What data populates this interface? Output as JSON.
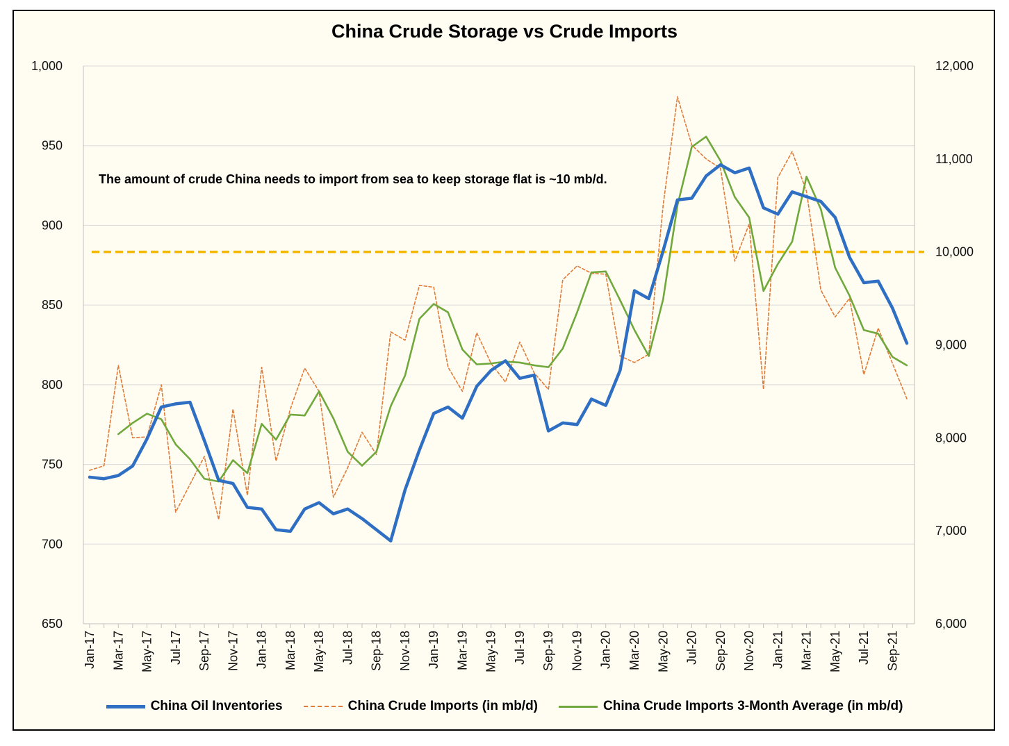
{
  "chart_data": {
    "type": "line",
    "title": "China Crude Storage vs Crude Imports",
    "annotation": "The amount of crude China needs to import from sea to keep storage flat is ~10 mb/d.",
    "x_tick_labels": [
      "Jan-17",
      "Mar-17",
      "May-17",
      "Jul-17",
      "Sep-17",
      "Nov-17",
      "Jan-18",
      "Mar-18",
      "May-18",
      "Jul-18",
      "Sep-18",
      "Nov-18",
      "Jan-19",
      "Mar-19",
      "May-19",
      "Jul-19",
      "Sep-19",
      "Nov-19",
      "Jan-20",
      "Mar-20",
      "May-20",
      "Jul-20",
      "Sep-20",
      "Nov-20",
      "Jan-21",
      "Mar-21",
      "May-21",
      "Jul-21",
      "Sep-21"
    ],
    "x_months": [
      "Jan-17",
      "Feb-17",
      "Mar-17",
      "Apr-17",
      "May-17",
      "Jun-17",
      "Jul-17",
      "Aug-17",
      "Sep-17",
      "Oct-17",
      "Nov-17",
      "Dec-17",
      "Jan-18",
      "Feb-18",
      "Mar-18",
      "Apr-18",
      "May-18",
      "Jun-18",
      "Jul-18",
      "Aug-18",
      "Sep-18",
      "Oct-18",
      "Nov-18",
      "Dec-18",
      "Jan-19",
      "Feb-19",
      "Mar-19",
      "Apr-19",
      "May-19",
      "Jun-19",
      "Jul-19",
      "Aug-19",
      "Sep-19",
      "Oct-19",
      "Nov-19",
      "Dec-19",
      "Jan-20",
      "Feb-20",
      "Mar-20",
      "Apr-20",
      "May-20",
      "Jun-20",
      "Jul-20",
      "Aug-20",
      "Sep-20",
      "Oct-20",
      "Nov-20",
      "Dec-20",
      "Jan-21",
      "Feb-21",
      "Mar-21",
      "Apr-21",
      "May-21",
      "Jun-21",
      "Jul-21",
      "Aug-21",
      "Sep-21",
      "Oct-21"
    ],
    "y_left": {
      "min": 650,
      "max": 1000,
      "ticks": [
        "650",
        "700",
        "750",
        "800",
        "850",
        "900",
        "950",
        "1,000"
      ]
    },
    "y_right": {
      "min": 6000,
      "max": 12000,
      "ticks": [
        "6,000",
        "7,000",
        "8,000",
        "9,000",
        "10,000",
        "11,000",
        "12,000"
      ]
    },
    "reference_line": {
      "axis": "right",
      "value": 10000,
      "color": "#f5b800"
    },
    "series": [
      {
        "name": "China Oil Inventories",
        "axis": "left",
        "color": "#2e6fc4",
        "style": "solid",
        "values": [
          742,
          741,
          743,
          749,
          766,
          786,
          788,
          789,
          765,
          740,
          738,
          723,
          722,
          709,
          708,
          722,
          726,
          719,
          722,
          716,
          709,
          702,
          734,
          759,
          782,
          786,
          779,
          799,
          809,
          815,
          804,
          806,
          771,
          776,
          775,
          791,
          787,
          809,
          859,
          854,
          884,
          916,
          917,
          931,
          938,
          933,
          936,
          911,
          907,
          921,
          918,
          915,
          905,
          880,
          864,
          865,
          848,
          826
        ]
      },
      {
        "name": "China Crude Imports (in mb/d)",
        "axis": "right",
        "color": "#e07b39",
        "style": "dashed",
        "values": [
          7650,
          7700,
          8780,
          8000,
          8010,
          8570,
          7200,
          7500,
          7800,
          7120,
          8310,
          7380,
          8760,
          7750,
          8310,
          8750,
          8500,
          7360,
          7680,
          8060,
          7820,
          9140,
          9050,
          9640,
          9620,
          8760,
          8500,
          9130,
          8800,
          8600,
          9030,
          8700,
          8520,
          9700,
          9850,
          9770,
          9760,
          8880,
          8810,
          8900,
          10500,
          11670,
          11150,
          11000,
          10900,
          9900,
          10300,
          8520,
          10800,
          11080,
          10650,
          9590,
          9300,
          9500,
          8680,
          9180,
          8800,
          8420
        ]
      },
      {
        "name": "China Crude Imports 3-Month Average (in mb/d)",
        "axis": "right",
        "color": "#70a83c",
        "style": "solid",
        "values": [
          null,
          null,
          8040,
          8160,
          8260,
          8200,
          7930,
          7770,
          7560,
          7530,
          7760,
          7620,
          8150,
          7980,
          8250,
          8240,
          8500,
          8210,
          7850,
          7700,
          7850,
          8340,
          8670,
          9280,
          9440,
          9350,
          8950,
          8790,
          8800,
          8820,
          8810,
          8780,
          8760,
          8960,
          9350,
          9780,
          9790,
          9480,
          9160,
          8880,
          9490,
          10500,
          11130,
          11240,
          10980,
          10590,
          10370,
          9580,
          9870,
          10110,
          10810,
          10460,
          9830,
          9530,
          9160,
          9120,
          8870,
          8780
        ]
      }
    ]
  }
}
